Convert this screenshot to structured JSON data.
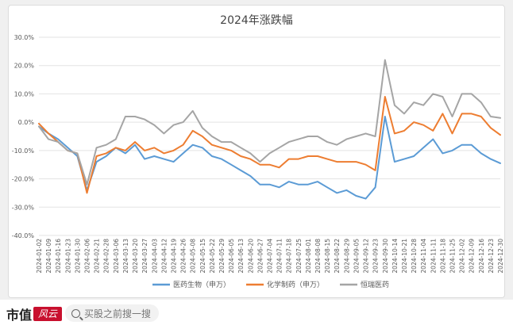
{
  "chart_data": {
    "type": "line",
    "title": "2024年涨跌幅",
    "y_ticks": [
      "30.0%",
      "20.0%",
      "10.0%",
      "0.0%",
      "-10.0%",
      "-20.0%",
      "-30.0%",
      "-40.0%"
    ],
    "ylim": [
      -40,
      30
    ],
    "x_ticks": [
      "2024-01-02",
      "2024-01-09",
      "2024-01-16",
      "2024-01-23",
      "2024-01-30",
      "2024-02-06",
      "2024-02-21",
      "2024-02-28",
      "2024-03-06",
      "2024-03-13",
      "2024-03-20",
      "2024-03-27",
      "2024-04-03",
      "2024-04-12",
      "2024-04-19",
      "2024-04-26",
      "2024-05-08",
      "2024-05-15",
      "2024-05-22",
      "2024-05-29",
      "2024-06-05",
      "2024-06-13",
      "2024-06-20",
      "2024-06-27",
      "2024-07-04",
      "2024-07-11",
      "2024-07-18",
      "2024-07-25",
      "2024-08-01",
      "2024-08-08",
      "2024-08-15",
      "2024-08-22",
      "2024-08-29",
      "2024-09-05",
      "2024-09-12",
      "2024-09-23",
      "2024-09-30",
      "2024-10-14",
      "2024-10-21",
      "2024-10-28",
      "2024-11-04",
      "2024-11-11",
      "2024-11-18",
      "2024-11-25",
      "2024-12-02",
      "2024-12-09",
      "2024-12-16",
      "2024-12-23",
      "2024-12-30"
    ],
    "series": [
      {
        "name": "医药生物（申万）",
        "color": "#5b9bd5",
        "values": [
          -1.5,
          -4,
          -6,
          -9,
          -12,
          -24,
          -14,
          -12,
          -9,
          -11,
          -8,
          -13,
          -12,
          -13,
          -14,
          -11,
          -8,
          -9,
          -12,
          -13,
          -15,
          -17,
          -19,
          -22,
          -22,
          -23,
          -21,
          -22,
          -22,
          -21,
          -23,
          -25,
          -24,
          -26,
          -27,
          -23,
          2,
          -14,
          -13,
          -12,
          -9,
          -6,
          -11,
          -10,
          -8,
          -8,
          -11,
          -13,
          -14.5
        ]
      },
      {
        "name": "化学制药（申万）",
        "color": "#ed7d31",
        "values": [
          -0.5,
          -4,
          -7,
          -10,
          -11,
          -25,
          -12,
          -11,
          -9,
          -10,
          -7,
          -10,
          -9,
          -11,
          -10,
          -8,
          -3,
          -5,
          -8,
          -9,
          -10,
          -12,
          -13,
          -15,
          -15,
          -16,
          -13,
          -13,
          -12,
          -12,
          -13,
          -14,
          -14,
          -14,
          -15,
          -17,
          9,
          -4,
          -3,
          0,
          -1,
          -3,
          3,
          -4,
          3,
          3,
          2,
          -2,
          -4.5
        ]
      },
      {
        "name": "恒瑞医药",
        "color": "#a5a5a5",
        "values": [
          -1.5,
          -6,
          -7,
          -10,
          -11,
          -22,
          -9,
          -8,
          -6,
          2,
          2,
          1,
          -1,
          -4,
          -1,
          0,
          4,
          -2,
          -5,
          -7,
          -7,
          -9,
          -11,
          -14,
          -11,
          -9,
          -7,
          -6,
          -5,
          -5,
          -7,
          -8,
          -6,
          -5,
          -4,
          -5,
          22,
          6,
          3,
          7,
          6,
          10,
          9,
          2,
          10,
          10,
          7,
          2,
          1.5
        ]
      }
    ]
  },
  "footer": {
    "brand_text": "市值",
    "brand_logo": "风云",
    "search_placeholder": "买股之前搜一搜"
  }
}
